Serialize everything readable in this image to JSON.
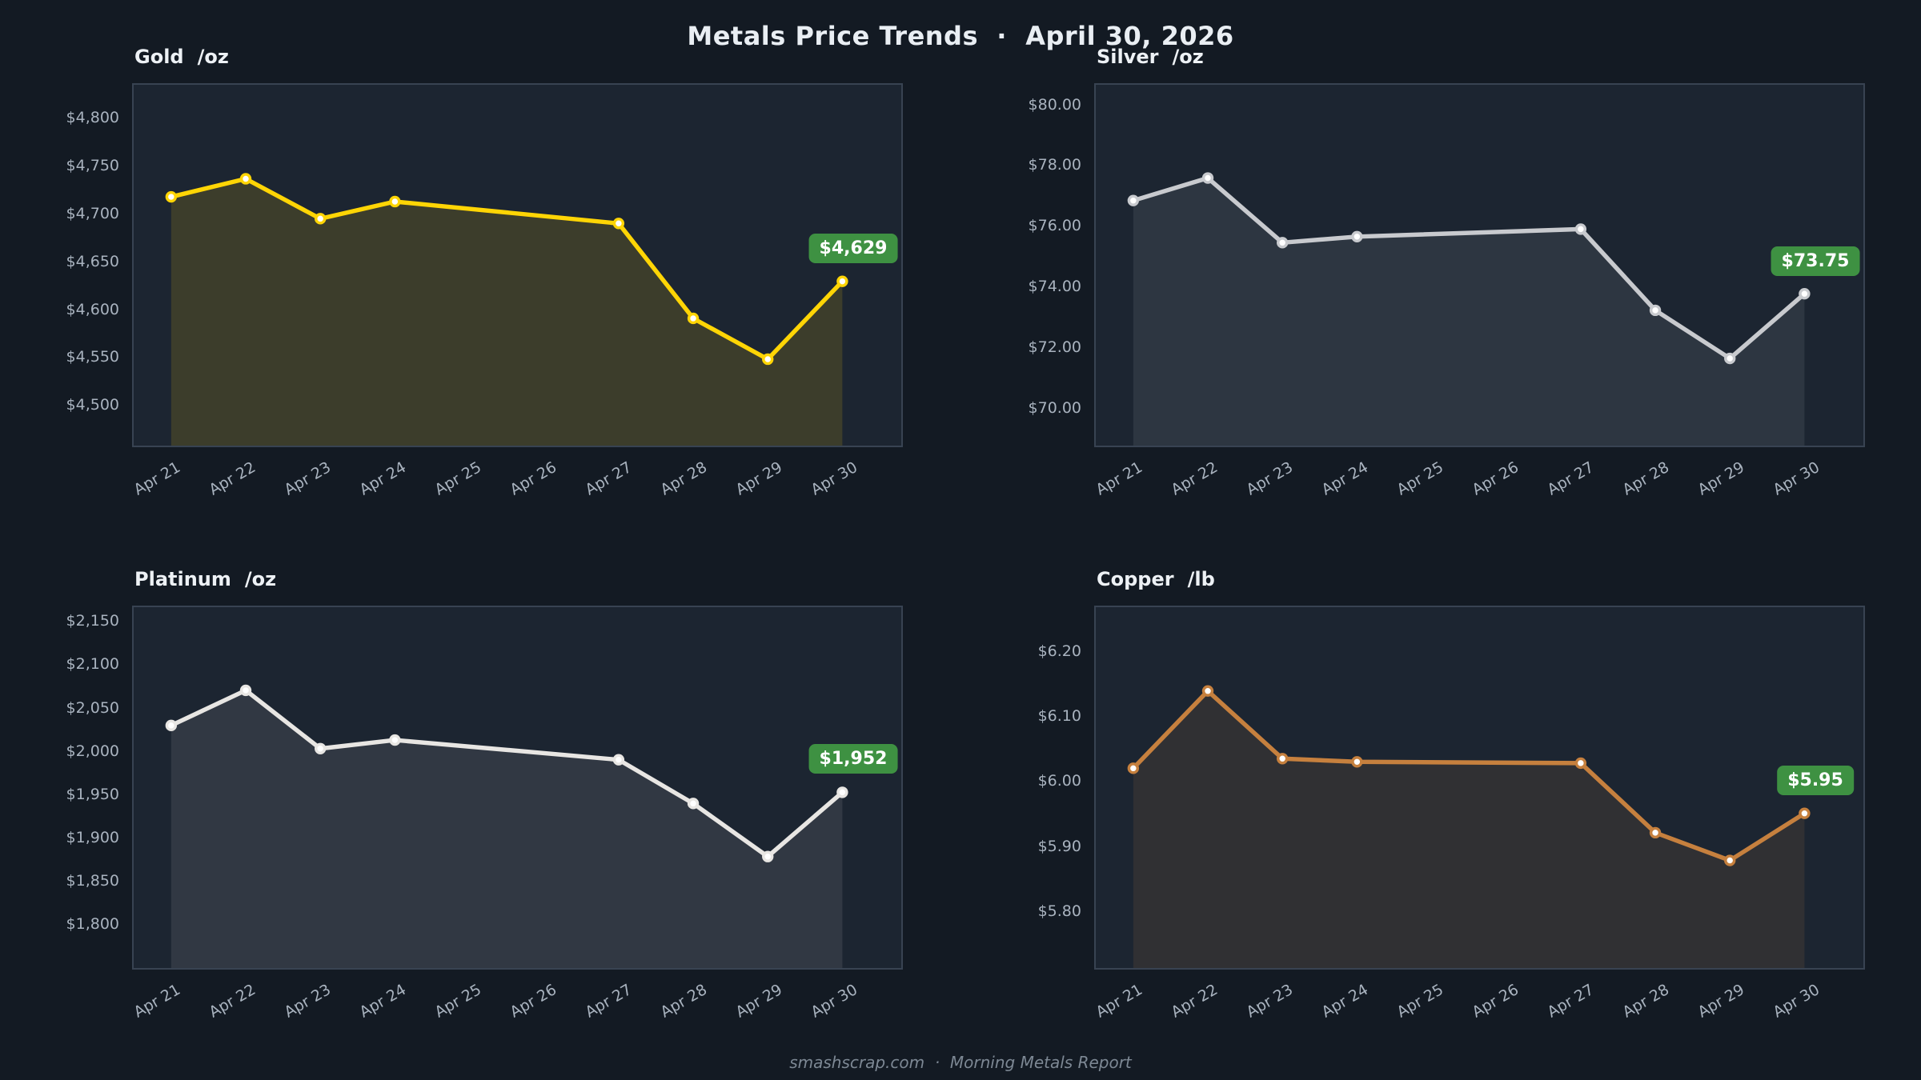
{
  "header": {
    "title": "Metals Price Trends  ·  April 30, 2026"
  },
  "footer": {
    "text": "smashscrap.com  ·  Morning Metals Report"
  },
  "theme": {
    "page_bg": "#131a23",
    "panel_bg": "#1c2531",
    "panel_border": "rgba(160,178,200,0.22)",
    "tick_label_color": "#a9b3bf",
    "title_color": "#e9eef3",
    "badge_green": "#3e9142",
    "marker_fill": "#ffffff"
  },
  "chart_data": [
    {
      "type": "area",
      "title": "Gold",
      "unit": "/oz",
      "categories": [
        "Apr 21",
        "Apr 22",
        "Apr 23",
        "Apr 24",
        "Apr 25",
        "Apr 26",
        "Apr 27",
        "Apr 28",
        "Apr 29",
        "Apr 30"
      ],
      "x_indices": [
        0,
        1,
        2,
        3,
        6,
        7,
        8,
        9
      ],
      "values": [
        4718,
        4737,
        4695,
        4713,
        4690,
        4590,
        4547,
        4629
      ],
      "ylim": [
        4456,
        4836
      ],
      "yticks": [
        4500,
        4550,
        4600,
        4650,
        4700,
        4750,
        4800
      ],
      "tick_prefix": "$",
      "decimals": 0,
      "grid": false,
      "line_color": "#ffd505",
      "fill_color": "rgba(255,213,5,0.14)",
      "end_label": "$4,629",
      "end_label_bg": "#3e9142"
    },
    {
      "type": "area",
      "title": "Silver",
      "unit": "/oz",
      "categories": [
        "Apr 21",
        "Apr 22",
        "Apr 23",
        "Apr 24",
        "Apr 25",
        "Apr 26",
        "Apr 27",
        "Apr 28",
        "Apr 29",
        "Apr 30"
      ],
      "x_indices": [
        0,
        1,
        2,
        3,
        6,
        7,
        8,
        9
      ],
      "values": [
        76.85,
        77.6,
        75.45,
        75.65,
        75.9,
        73.2,
        71.6,
        73.75
      ],
      "ylim": [
        68.7,
        80.7
      ],
      "yticks": [
        70,
        72,
        74,
        76,
        78,
        80
      ],
      "tick_prefix": "$",
      "decimals": 2,
      "grid": false,
      "line_color": "#c8cace",
      "fill_color": "rgba(200,202,206,0.10)",
      "end_label": "$73.75",
      "end_label_bg": "#3e9142"
    },
    {
      "type": "area",
      "title": "Platinum",
      "unit": "/oz",
      "categories": [
        "Apr 21",
        "Apr 22",
        "Apr 23",
        "Apr 24",
        "Apr 25",
        "Apr 26",
        "Apr 27",
        "Apr 28",
        "Apr 29",
        "Apr 30"
      ],
      "x_indices": [
        0,
        1,
        2,
        3,
        6,
        7,
        8,
        9
      ],
      "values": [
        2030,
        2071,
        2003,
        2013,
        1990,
        1939,
        1877,
        1952
      ],
      "ylim": [
        1747,
        2168
      ],
      "yticks": [
        1800,
        1850,
        1900,
        1950,
        2000,
        2050,
        2100,
        2150
      ],
      "tick_prefix": "$",
      "decimals": 0,
      "grid": false,
      "line_color": "#e8e6e3",
      "fill_color": "rgba(232,230,227,0.10)",
      "end_label": "$1,952",
      "end_label_bg": "#3e9142"
    },
    {
      "type": "area",
      "title": "Copper",
      "unit": "/lb",
      "categories": [
        "Apr 21",
        "Apr 22",
        "Apr 23",
        "Apr 24",
        "Apr 25",
        "Apr 26",
        "Apr 27",
        "Apr 28",
        "Apr 29",
        "Apr 30"
      ],
      "x_indices": [
        0,
        1,
        2,
        3,
        6,
        7,
        8,
        9
      ],
      "values": [
        6.02,
        6.14,
        6.035,
        6.03,
        6.028,
        5.92,
        5.877,
        5.95
      ],
      "ylim": [
        5.71,
        6.27
      ],
      "yticks": [
        5.8,
        5.9,
        6.0,
        6.1,
        6.2
      ],
      "tick_prefix": "$",
      "decimals": 2,
      "grid": false,
      "line_color": "#c6803e",
      "fill_color": "rgba(198,128,62,0.12)",
      "end_label": "$5.95",
      "end_label_bg": "#3e9142"
    }
  ]
}
